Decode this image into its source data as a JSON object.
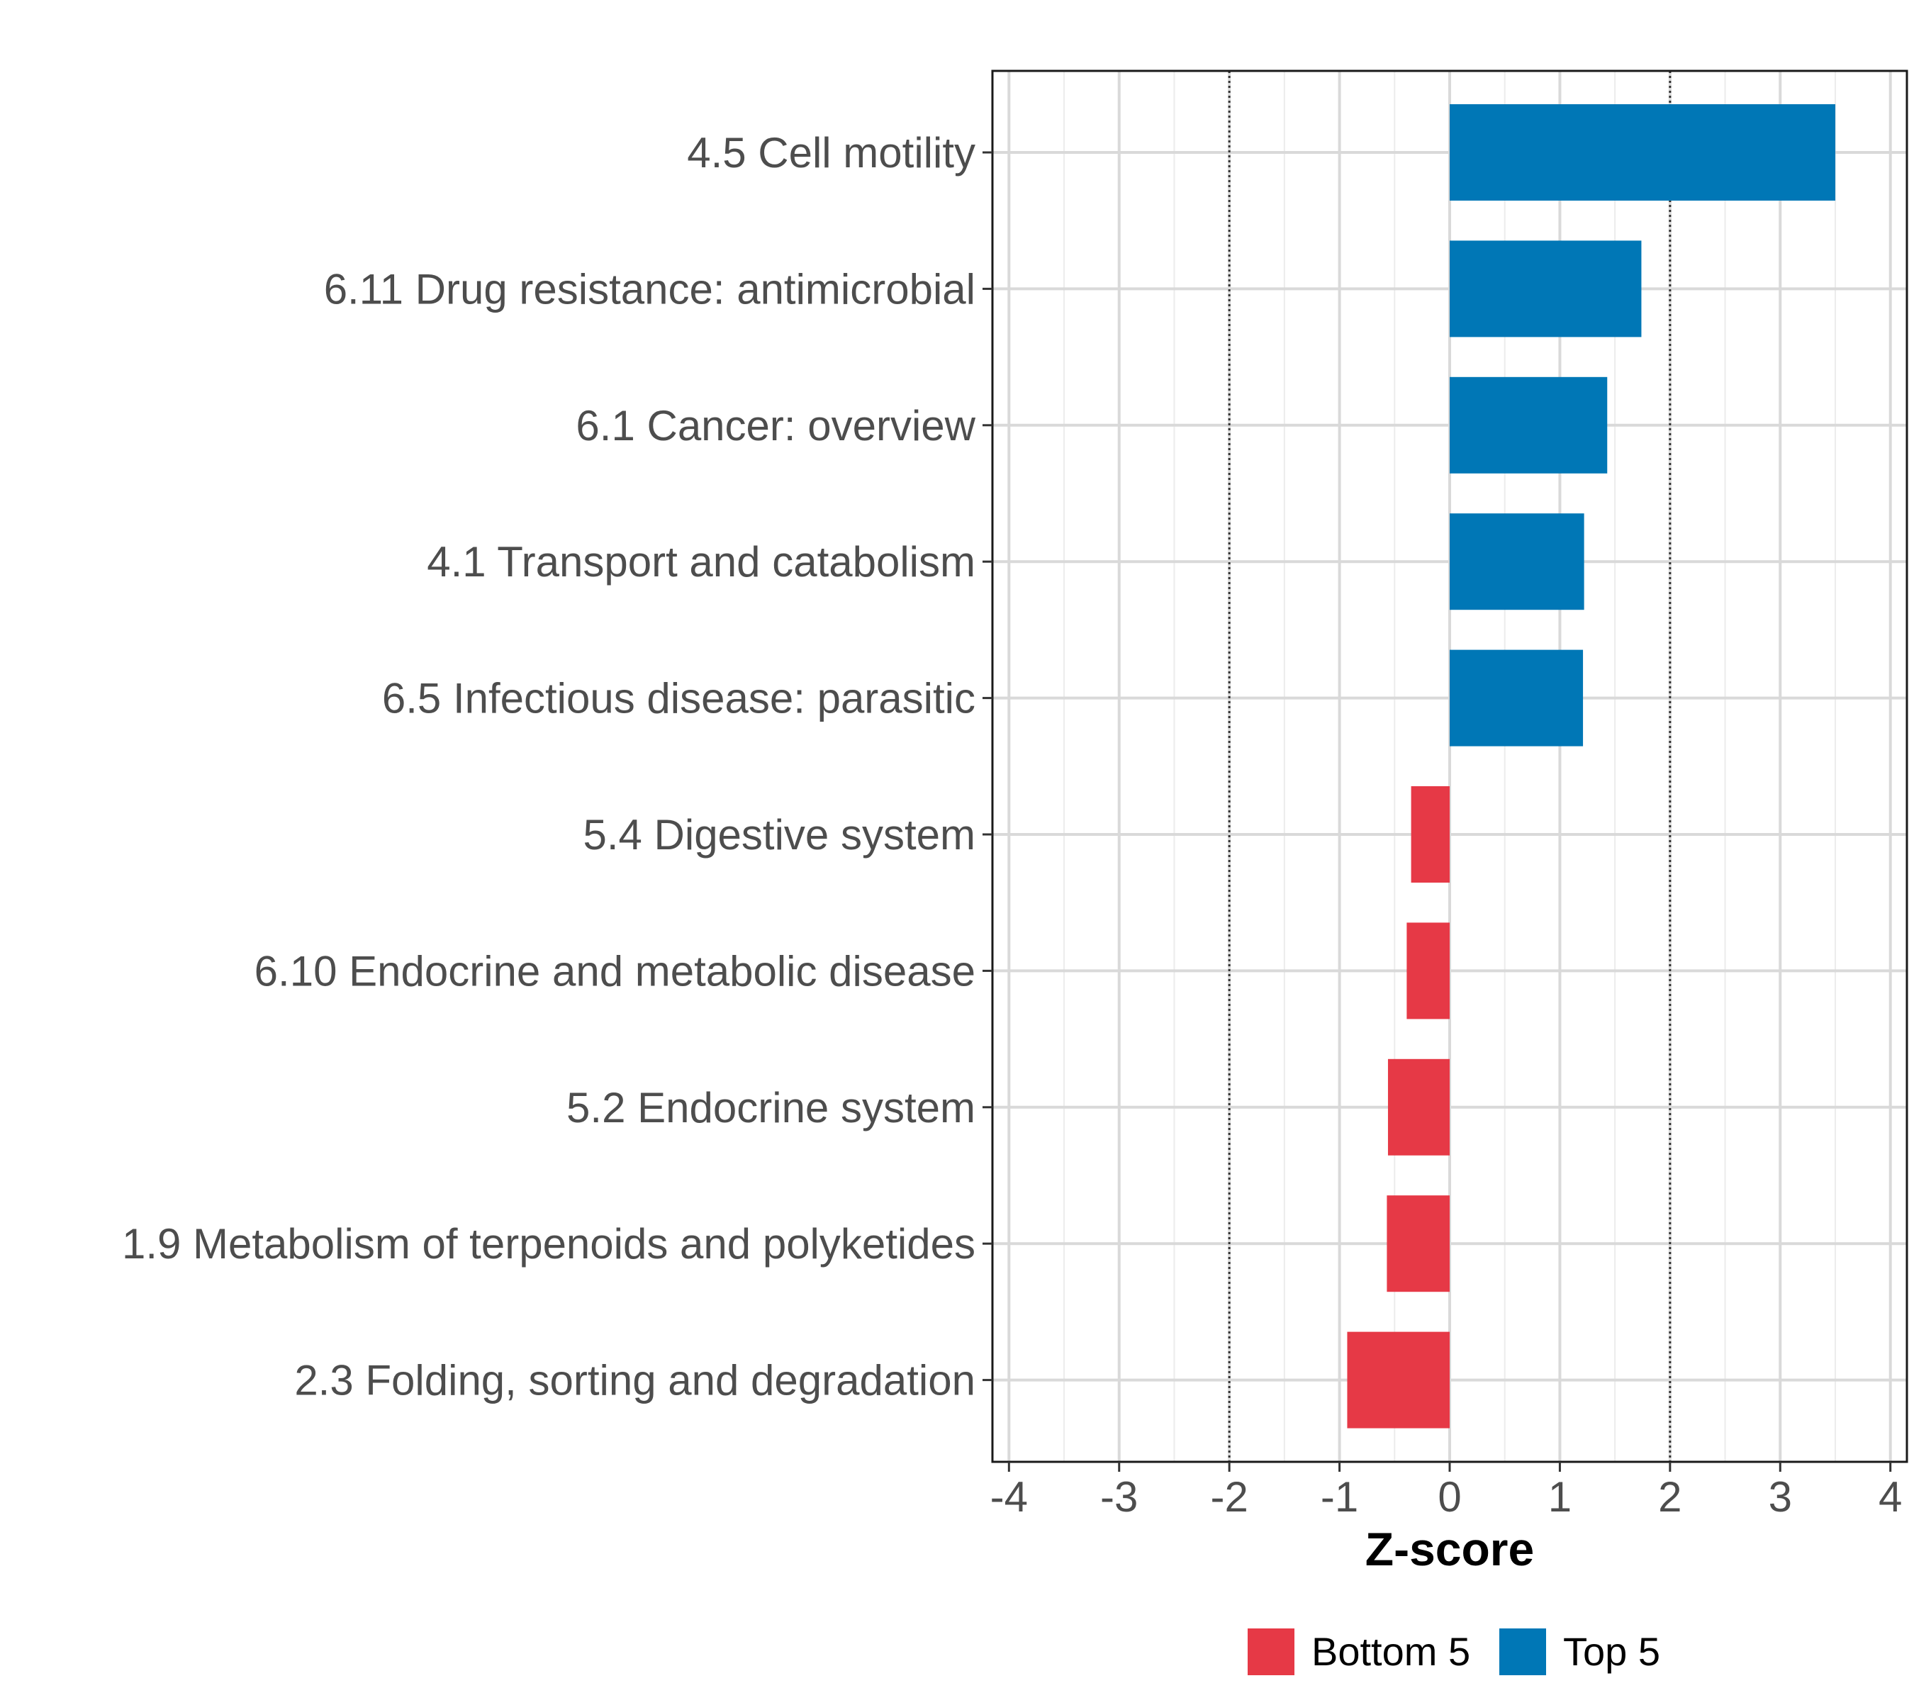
{
  "chart_data": {
    "type": "bar",
    "orientation": "horizontal",
    "title": "",
    "xlabel": "Z-score",
    "ylabel": "",
    "xlim": [
      -4.15,
      4.15
    ],
    "x_ticks": [
      -4,
      -3,
      -2,
      -1,
      0,
      1,
      2,
      3,
      4
    ],
    "x_tick_labels": [
      "-4",
      "-3",
      "-2",
      "-1",
      "0",
      "1",
      "2",
      "3",
      "4"
    ],
    "reference_lines": [
      -2,
      2
    ],
    "grid": true,
    "categories": [
      "4.5 Cell motility",
      "6.11 Drug resistance: antimicrobial",
      "6.1 Cancer: overview",
      "4.1 Transport and catabolism",
      "6.5 Infectious disease: parasitic",
      "5.4 Digestive system",
      "6.10 Endocrine and metabolic disease",
      "5.2 Endocrine system",
      "1.9 Metabolism of terpenoids and polyketides",
      "2.3 Folding, sorting and degradation"
    ],
    "values": [
      3.5,
      1.74,
      1.43,
      1.22,
      1.21,
      -0.35,
      -0.39,
      -0.56,
      -0.57,
      -0.93
    ],
    "groups": [
      "Top 5",
      "Top 5",
      "Top 5",
      "Top 5",
      "Top 5",
      "Bottom 5",
      "Bottom 5",
      "Bottom 5",
      "Bottom 5",
      "Bottom 5"
    ],
    "legend": {
      "position": "bottom",
      "entries": [
        {
          "label": "Bottom 5",
          "color": "#E63946"
        },
        {
          "label": "Top 5",
          "color": "#0077B6"
        }
      ]
    },
    "colors": {
      "Top 5": "#0077B6",
      "Bottom 5": "#E63946"
    }
  }
}
